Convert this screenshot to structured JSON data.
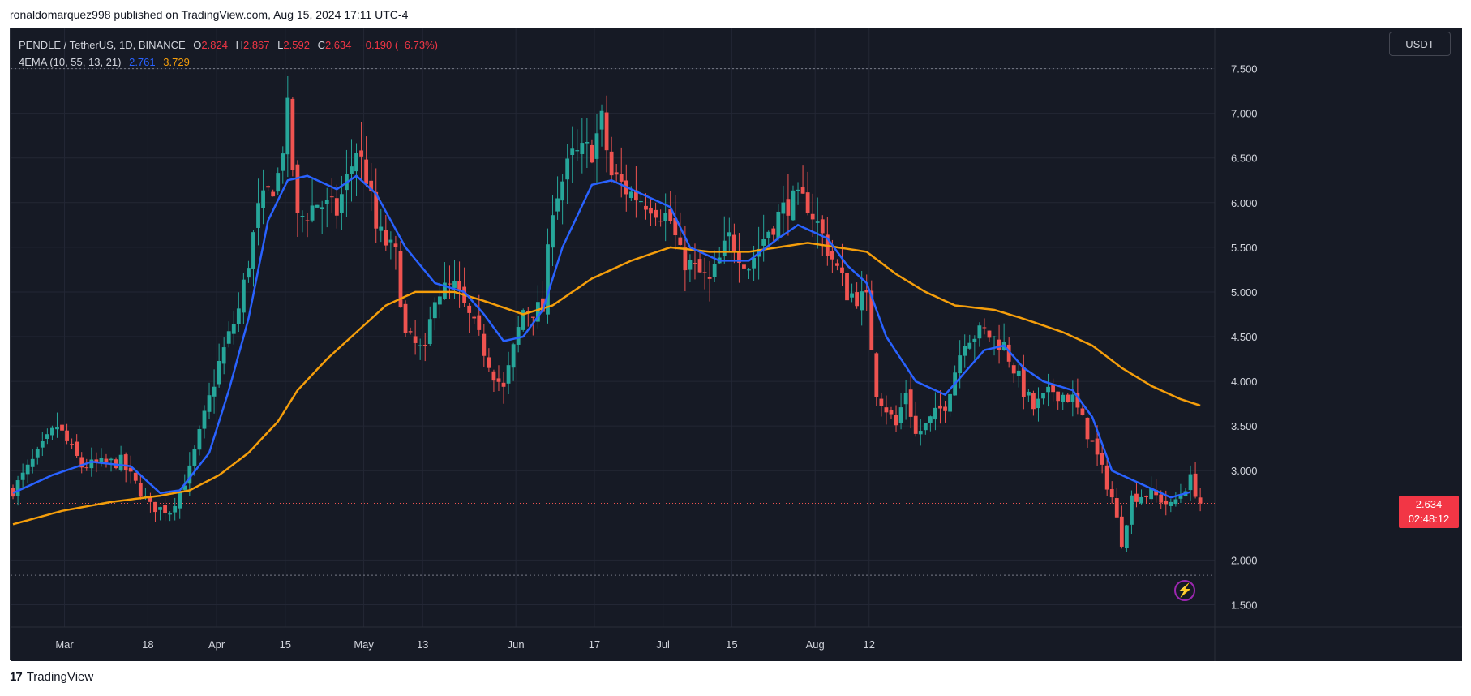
{
  "publish_caption": "ronaldomarquez998 published on TradingView.com, Aug 15, 2024 17:11 UTC-4",
  "footer": {
    "logo_glyph": "17",
    "brand": "TradingView"
  },
  "legend": {
    "symbol": "PENDLE / TetherUS, 1D, BINANCE",
    "o_label": "O",
    "o_value": "2.824",
    "h_label": "H",
    "h_value": "2.867",
    "l_label": "L",
    "l_value": "2.592",
    "c_label": "C",
    "c_value": "2.634",
    "change": "−0.190 (−6.73%)",
    "indicator": "4EMA (10, 55, 13, 21)",
    "ema_fast_value": "2.761",
    "ema_slow_value": "3.729"
  },
  "currency_button": "USDT",
  "last_price": {
    "price": "2.634",
    "countdown": "02:48:12"
  },
  "colors": {
    "background": "#161a25",
    "up": "#26a69a",
    "down": "#ef5350",
    "ema_fast": "#2962ff",
    "ema_slow": "#f59e0b",
    "grid": "#232735",
    "axis_text": "#d1d4dc"
  },
  "chart_data": {
    "type": "candlestick",
    "title": "PENDLE / TetherUS, 1D, BINANCE",
    "x_tick_labels": [
      "Mar",
      "18",
      "Apr",
      "15",
      "May",
      "13",
      "Jun",
      "17",
      "Jul",
      "15",
      "Aug",
      "12"
    ],
    "y_tick_labels": [
      "7.500",
      "7.000",
      "6.500",
      "6.000",
      "5.500",
      "5.000",
      "4.500",
      "4.000",
      "3.500",
      "3.000",
      "2.000",
      "1.500"
    ],
    "ylim": [
      1.25,
      7.95
    ],
    "x_start": "2024-02-19",
    "dashed_levels": [
      7.5,
      1.83
    ],
    "last_price_level": 2.634,
    "grid": true,
    "close_anchors": [
      [
        0,
        2.78
      ],
      [
        9,
        3.5
      ],
      [
        14,
        3.05
      ],
      [
        22,
        3.1
      ],
      [
        28,
        2.6
      ],
      [
        32,
        2.55
      ],
      [
        36,
        3.0
      ],
      [
        42,
        4.2
      ],
      [
        46,
        4.8
      ],
      [
        50,
        5.9
      ],
      [
        54,
        6.3
      ],
      [
        56,
        7.0
      ],
      [
        58,
        5.8
      ],
      [
        62,
        6.0
      ],
      [
        66,
        5.9
      ],
      [
        70,
        6.6
      ],
      [
        72,
        6.3
      ],
      [
        74,
        5.7
      ],
      [
        78,
        5.4
      ],
      [
        80,
        4.5
      ],
      [
        84,
        4.3
      ],
      [
        86,
        5.0
      ],
      [
        90,
        5.05
      ],
      [
        94,
        4.6
      ],
      [
        98,
        4.1
      ],
      [
        100,
        3.9
      ],
      [
        104,
        4.8
      ],
      [
        108,
        4.8
      ],
      [
        110,
        6.0
      ],
      [
        114,
        6.5
      ],
      [
        118,
        6.6
      ],
      [
        120,
        6.9
      ],
      [
        122,
        6.3
      ],
      [
        126,
        6.1
      ],
      [
        130,
        6.0
      ],
      [
        134,
        5.8
      ],
      [
        136,
        5.4
      ],
      [
        142,
        5.1
      ],
      [
        146,
        5.6
      ],
      [
        150,
        5.3
      ],
      [
        154,
        5.7
      ],
      [
        158,
        6.0
      ],
      [
        162,
        6.0
      ],
      [
        166,
        5.5
      ],
      [
        170,
        5.0
      ],
      [
        174,
        4.9
      ],
      [
        176,
        3.9
      ],
      [
        180,
        3.5
      ],
      [
        182,
        3.9
      ],
      [
        184,
        3.4
      ],
      [
        186,
        3.5
      ],
      [
        190,
        3.75
      ],
      [
        194,
        4.5
      ],
      [
        198,
        4.55
      ],
      [
        202,
        4.4
      ],
      [
        206,
        3.9
      ],
      [
        208,
        3.7
      ],
      [
        212,
        3.9
      ],
      [
        216,
        3.8
      ],
      [
        220,
        3.3
      ],
      [
        224,
        2.7
      ],
      [
        226,
        2.2
      ],
      [
        228,
        2.7
      ],
      [
        232,
        2.75
      ],
      [
        236,
        2.6
      ],
      [
        238,
        2.75
      ],
      [
        240,
        2.9
      ],
      [
        242,
        2.634
      ]
    ],
    "ema_fast_anchors": [
      [
        0,
        2.75
      ],
      [
        8,
        2.95
      ],
      [
        16,
        3.1
      ],
      [
        24,
        3.05
      ],
      [
        30,
        2.75
      ],
      [
        34,
        2.78
      ],
      [
        40,
        3.2
      ],
      [
        44,
        3.9
      ],
      [
        48,
        4.7
      ],
      [
        52,
        5.8
      ],
      [
        56,
        6.25
      ],
      [
        60,
        6.3
      ],
      [
        66,
        6.15
      ],
      [
        70,
        6.3
      ],
      [
        74,
        6.1
      ],
      [
        80,
        5.5
      ],
      [
        86,
        5.1
      ],
      [
        92,
        5.0
      ],
      [
        96,
        4.75
      ],
      [
        100,
        4.45
      ],
      [
        104,
        4.5
      ],
      [
        108,
        4.8
      ],
      [
        112,
        5.5
      ],
      [
        118,
        6.2
      ],
      [
        122,
        6.25
      ],
      [
        128,
        6.1
      ],
      [
        134,
        5.95
      ],
      [
        138,
        5.5
      ],
      [
        144,
        5.35
      ],
      [
        150,
        5.35
      ],
      [
        156,
        5.6
      ],
      [
        160,
        5.75
      ],
      [
        166,
        5.6
      ],
      [
        170,
        5.3
      ],
      [
        174,
        5.1
      ],
      [
        178,
        4.5
      ],
      [
        184,
        4.0
      ],
      [
        190,
        3.85
      ],
      [
        194,
        4.1
      ],
      [
        198,
        4.35
      ],
      [
        202,
        4.4
      ],
      [
        206,
        4.15
      ],
      [
        210,
        4.0
      ],
      [
        216,
        3.9
      ],
      [
        220,
        3.6
      ],
      [
        224,
        3.0
      ],
      [
        230,
        2.85
      ],
      [
        236,
        2.7
      ],
      [
        240,
        2.761
      ]
    ],
    "ema_slow_anchors": [
      [
        0,
        2.4
      ],
      [
        10,
        2.55
      ],
      [
        20,
        2.65
      ],
      [
        30,
        2.72
      ],
      [
        36,
        2.78
      ],
      [
        42,
        2.95
      ],
      [
        48,
        3.2
      ],
      [
        54,
        3.55
      ],
      [
        58,
        3.9
      ],
      [
        64,
        4.25
      ],
      [
        70,
        4.55
      ],
      [
        76,
        4.85
      ],
      [
        82,
        5.0
      ],
      [
        90,
        5.0
      ],
      [
        96,
        4.9
      ],
      [
        104,
        4.75
      ],
      [
        110,
        4.85
      ],
      [
        118,
        5.15
      ],
      [
        126,
        5.35
      ],
      [
        134,
        5.5
      ],
      [
        142,
        5.45
      ],
      [
        150,
        5.45
      ],
      [
        156,
        5.5
      ],
      [
        162,
        5.55
      ],
      [
        168,
        5.5
      ],
      [
        174,
        5.45
      ],
      [
        180,
        5.2
      ],
      [
        186,
        5.0
      ],
      [
        192,
        4.85
      ],
      [
        200,
        4.8
      ],
      [
        206,
        4.7
      ],
      [
        214,
        4.55
      ],
      [
        220,
        4.4
      ],
      [
        226,
        4.15
      ],
      [
        232,
        3.95
      ],
      [
        238,
        3.8
      ],
      [
        242,
        3.729
      ]
    ]
  }
}
